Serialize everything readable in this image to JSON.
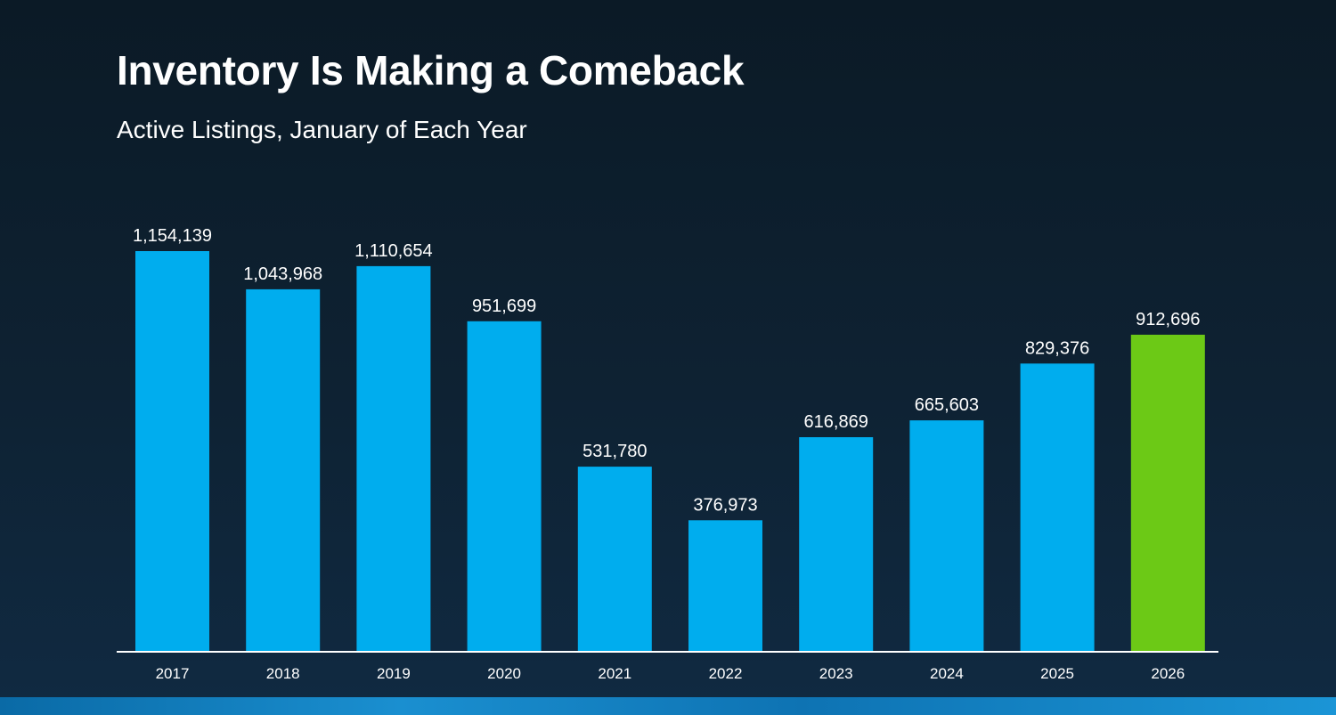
{
  "header": {
    "title": "Inventory Is Making a Comeback",
    "subtitle": "Active Listings, January of Each Year"
  },
  "colors": {
    "bar": "#00adee",
    "highlight_bar": "#6cc916",
    "axis": "#ffffff",
    "label": "#ffffff"
  },
  "chart_data": {
    "type": "bar",
    "title": "Inventory Is Making a Comeback",
    "subtitle": "Active Listings, January of Each Year",
    "xlabel": "",
    "ylabel": "",
    "categories": [
      "2017",
      "2018",
      "2019",
      "2020",
      "2021",
      "2022",
      "2023",
      "2024",
      "2025",
      "2026"
    ],
    "values": [
      1154139,
      1043968,
      1110654,
      951699,
      531780,
      376973,
      616869,
      665603,
      829376,
      912696
    ],
    "value_labels": [
      "1,154,139",
      "1,043,968",
      "1,110,654",
      "951,699",
      "531,780",
      "376,973",
      "616,869",
      "665,603",
      "829,376",
      "912,696"
    ],
    "highlight_category": "2026",
    "ylim": [
      0,
      1154139
    ],
    "grid": false,
    "legend": "none"
  }
}
